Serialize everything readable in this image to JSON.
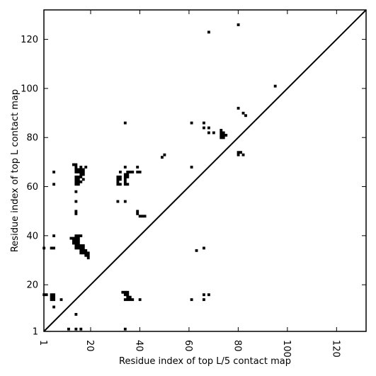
{
  "chart_data": {
    "type": "scatter",
    "title": "",
    "xlabel": "Residue index of top L/5 contact map",
    "ylabel": "Residue index of top L contact map",
    "xlim": [
      1,
      132
    ],
    "ylim": [
      1,
      132
    ],
    "xticks": [
      1,
      20,
      40,
      60,
      80,
      100,
      120
    ],
    "yticks": [
      1,
      20,
      40,
      60,
      80,
      100,
      120
    ],
    "xtick_labels": [
      "1",
      "20",
      "40",
      "60",
      "80",
      "100",
      "120"
    ],
    "ytick_labels": [
      "1",
      "20",
      "40",
      "60",
      "80",
      "100",
      "120"
    ],
    "xtick_rotation": -90,
    "grid": false,
    "legend": "none",
    "diagonal": {
      "from": [
        1,
        1
      ],
      "to": [
        132,
        132
      ]
    },
    "marker_color": "#000000",
    "points": [
      [
        1,
        35
      ],
      [
        1,
        16
      ],
      [
        2,
        16
      ],
      [
        5,
        61
      ],
      [
        5,
        66
      ],
      [
        5,
        40
      ],
      [
        5,
        35
      ],
      [
        4,
        35
      ],
      [
        4,
        16
      ],
      [
        5,
        16
      ],
      [
        4,
        15
      ],
      [
        5,
        15
      ],
      [
        4,
        14
      ],
      [
        5,
        14
      ],
      [
        5,
        11
      ],
      [
        8,
        14
      ],
      [
        11,
        2
      ],
      [
        14,
        2
      ],
      [
        14,
        8
      ],
      [
        16,
        2
      ],
      [
        13,
        69
      ],
      [
        14,
        69
      ],
      [
        14,
        68
      ],
      [
        14,
        67
      ],
      [
        15,
        67
      ],
      [
        15,
        66
      ],
      [
        14,
        66
      ],
      [
        16,
        66
      ],
      [
        17,
        66
      ],
      [
        16,
        67
      ],
      [
        17,
        67
      ],
      [
        16,
        68
      ],
      [
        18,
        68
      ],
      [
        14,
        64
      ],
      [
        15,
        64
      ],
      [
        16,
        65
      ],
      [
        17,
        65
      ],
      [
        16,
        64
      ],
      [
        14,
        63
      ],
      [
        15,
        63
      ],
      [
        17,
        63
      ],
      [
        14,
        62
      ],
      [
        15,
        62
      ],
      [
        16,
        62
      ],
      [
        14,
        61
      ],
      [
        15,
        61
      ],
      [
        14,
        58
      ],
      [
        14,
        54
      ],
      [
        14,
        50
      ],
      [
        14,
        49
      ],
      [
        12,
        39
      ],
      [
        13,
        39
      ],
      [
        14,
        39
      ],
      [
        15,
        39
      ],
      [
        16,
        40
      ],
      [
        14,
        40
      ],
      [
        15,
        40
      ],
      [
        13,
        38
      ],
      [
        14,
        38
      ],
      [
        15,
        38
      ],
      [
        13,
        37
      ],
      [
        14,
        37
      ],
      [
        15,
        37
      ],
      [
        14,
        36
      ],
      [
        15,
        36
      ],
      [
        16,
        36
      ],
      [
        17,
        36
      ],
      [
        14,
        35
      ],
      [
        15,
        35
      ],
      [
        16,
        35
      ],
      [
        17,
        35
      ],
      [
        16,
        34
      ],
      [
        17,
        34
      ],
      [
        18,
        34
      ],
      [
        16,
        33
      ],
      [
        17,
        33
      ],
      [
        18,
        33
      ],
      [
        19,
        33
      ],
      [
        18,
        32
      ],
      [
        19,
        32
      ],
      [
        19,
        31
      ],
      [
        31,
        64
      ],
      [
        32,
        64
      ],
      [
        31,
        63
      ],
      [
        32,
        63
      ],
      [
        31,
        62
      ],
      [
        31,
        61
      ],
      [
        32,
        61
      ],
      [
        32,
        66
      ],
      [
        31,
        54
      ],
      [
        34,
        86
      ],
      [
        34,
        68
      ],
      [
        35,
        66
      ],
      [
        36,
        66
      ],
      [
        37,
        66
      ],
      [
        34,
        65
      ],
      [
        35,
        65
      ],
      [
        34,
        64
      ],
      [
        35,
        64
      ],
      [
        34,
        63
      ],
      [
        34,
        62
      ],
      [
        34,
        61
      ],
      [
        35,
        61
      ],
      [
        34,
        54
      ],
      [
        33,
        17
      ],
      [
        34,
        17
      ],
      [
        35,
        17
      ],
      [
        34,
        16
      ],
      [
        35,
        16
      ],
      [
        35,
        15
      ],
      [
        36,
        15
      ],
      [
        34,
        14
      ],
      [
        35,
        14
      ],
      [
        36,
        14
      ],
      [
        37,
        14
      ],
      [
        34,
        2
      ],
      [
        39,
        68
      ],
      [
        39,
        66
      ],
      [
        40,
        66
      ],
      [
        39,
        50
      ],
      [
        39,
        49
      ],
      [
        40,
        48
      ],
      [
        41,
        48
      ],
      [
        42,
        48
      ],
      [
        40,
        14
      ],
      [
        49,
        72
      ],
      [
        50,
        73
      ],
      [
        61,
        86
      ],
      [
        61,
        68
      ],
      [
        61,
        14
      ],
      [
        63,
        34
      ],
      [
        66,
        86
      ],
      [
        66,
        84
      ],
      [
        66,
        35
      ],
      [
        66,
        16
      ],
      [
        66,
        14
      ],
      [
        68,
        123
      ],
      [
        68,
        84
      ],
      [
        68,
        82
      ],
      [
        68,
        16
      ],
      [
        70,
        82
      ],
      [
        73,
        83
      ],
      [
        73,
        82
      ],
      [
        74,
        82
      ],
      [
        75,
        81
      ],
      [
        73,
        81
      ],
      [
        74,
        81
      ],
      [
        73,
        80
      ],
      [
        74,
        80
      ],
      [
        80,
        126
      ],
      [
        80,
        92
      ],
      [
        80,
        74
      ],
      [
        81,
        74
      ],
      [
        80,
        73
      ],
      [
        82,
        90
      ],
      [
        83,
        89
      ],
      [
        82,
        73
      ],
      [
        95,
        101
      ]
    ]
  }
}
